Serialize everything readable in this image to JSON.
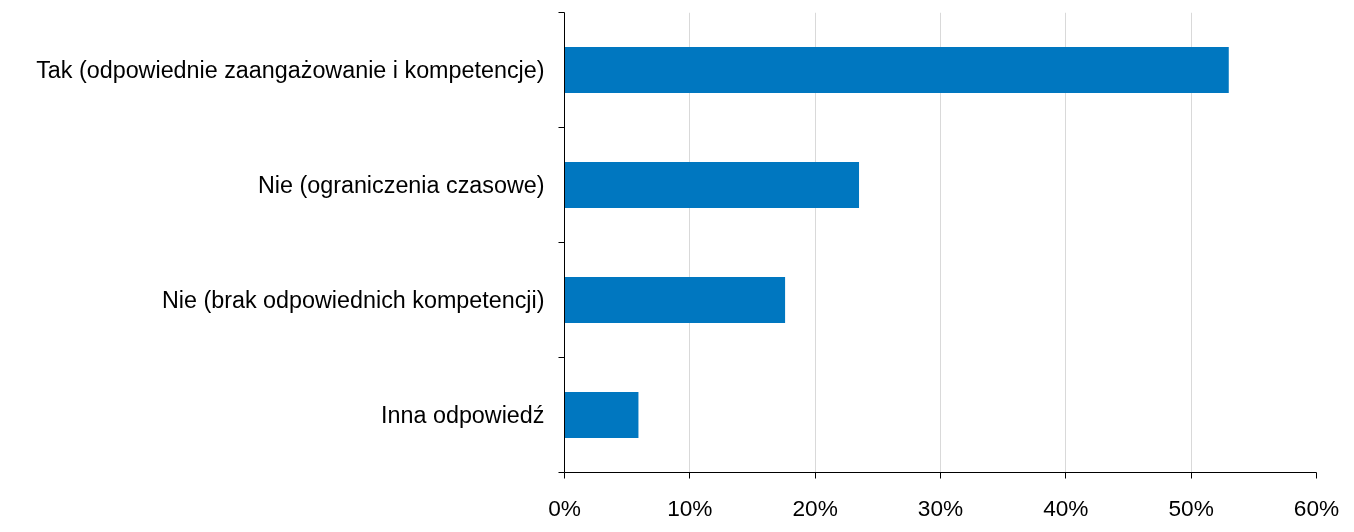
{
  "chart_data": {
    "type": "bar",
    "orientation": "horizontal",
    "categories": [
      "Tak (odpowiednie zaangażowanie i kompetencje)",
      "Nie (ograniczenia czasowe)",
      "Nie (brak odpowiednich kompetencji)",
      "Inna odpowiedź"
    ],
    "values": [
      53,
      23.5,
      17.6,
      5.9
    ],
    "color": "#0077c0",
    "xlim": [
      0,
      60
    ],
    "xticks": [
      {
        "value": 0,
        "label": "0%"
      },
      {
        "value": 10,
        "label": "10%"
      },
      {
        "value": 20,
        "label": "20%"
      },
      {
        "value": 30,
        "label": "30%"
      },
      {
        "value": 40,
        "label": "40%"
      },
      {
        "value": 50,
        "label": "50%"
      },
      {
        "value": 60,
        "label": "60%"
      }
    ],
    "grid": "x"
  }
}
